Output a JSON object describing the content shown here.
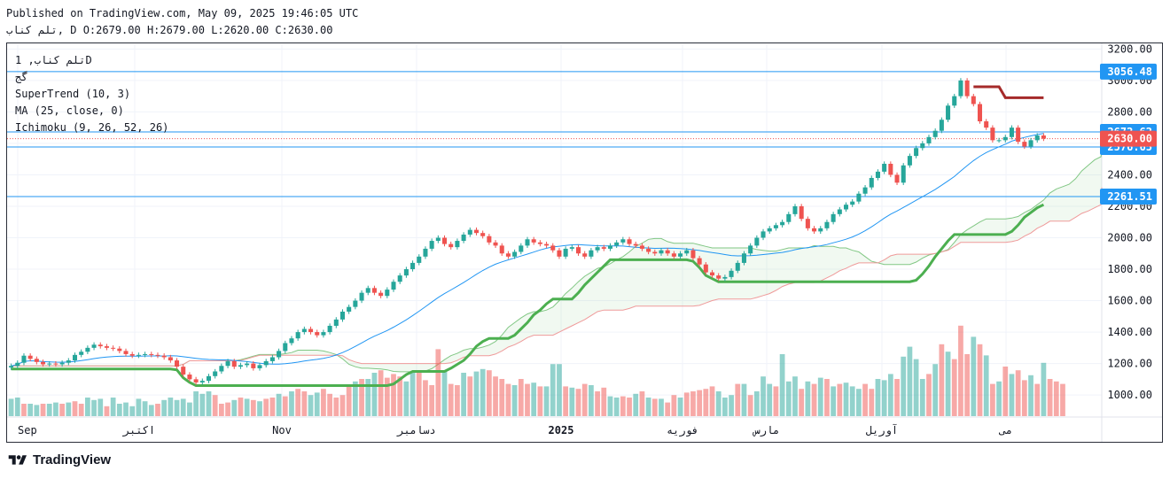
{
  "header": {
    "published": "Published on TradingView.com, May 09, 2025 19:46:05 UTC",
    "ohlc": "تلم کناب, D O:2679.00 H:2679.00 L:2620.00 C:2630.00"
  },
  "legend": {
    "symbol": "تلم کناب, 1D",
    "line2": "گج",
    "supertrend": "SuperTrend (10, 3)",
    "ma": "MA (25, close, 0)",
    "ichimoku": "Ichimoku (9, 26, 52, 26)"
  },
  "brand": {
    "name": "TradingView"
  },
  "colors": {
    "up": "#26a69a",
    "down": "#ef5350",
    "supertrend_up": "#4caf50",
    "supertrend_down": "#a52a2a",
    "ma": "#2196f3",
    "hline": "#2196f3",
    "last_price": "#ef5350"
  },
  "chart_data": {
    "type": "candlestick",
    "y_axis": {
      "ticks": [
        1000,
        1200,
        1400,
        1600,
        1800,
        2000,
        2200,
        2400,
        2600,
        2800,
        3000,
        3200
      ],
      "tick_labels": [
        "1000.00",
        "1200.00",
        "1400.00",
        "1600.00",
        "1800.00",
        "2000.00",
        "2200.00",
        "2400.00",
        "2600.00",
        "2800.00",
        "3000.00",
        "3200.00"
      ],
      "ylim": [
        860,
        3230
      ]
    },
    "x_axis": {
      "labels": [
        "Sep",
        "اکتبر",
        "Nov",
        "دسامبر",
        "2025",
        "فوریه",
        "مارس",
        "آوریل",
        "می"
      ]
    },
    "horizontal_lines": [
      {
        "value": 3056.48,
        "label": "3056.48"
      },
      {
        "value": 2672.62,
        "label": "2672.62"
      },
      {
        "value": 2576.65,
        "label": "2576.65"
      },
      {
        "value": 2261.51,
        "label": "2261.51"
      }
    ],
    "last_price": {
      "value": 2630.0,
      "label": "2630.00"
    },
    "closes": [
      1185,
      1205,
      1250,
      1230,
      1210,
      1195,
      1200,
      1195,
      1205,
      1220,
      1255,
      1275,
      1300,
      1320,
      1310,
      1300,
      1295,
      1280,
      1260,
      1250,
      1255,
      1260,
      1255,
      1250,
      1240,
      1220,
      1180,
      1130,
      1100,
      1080,
      1090,
      1120,
      1150,
      1185,
      1215,
      1180,
      1190,
      1200,
      1170,
      1190,
      1215,
      1240,
      1280,
      1330,
      1360,
      1400,
      1420,
      1400,
      1380,
      1400,
      1440,
      1480,
      1530,
      1560,
      1600,
      1650,
      1680,
      1650,
      1630,
      1670,
      1720,
      1760,
      1800,
      1840,
      1880,
      1930,
      1980,
      2000,
      1960,
      1940,
      1980,
      2020,
      2050,
      2030,
      2010,
      1970,
      1950,
      1900,
      1880,
      1910,
      1950,
      1990,
      1970,
      1960,
      1950,
      1920,
      1880,
      1930,
      1940,
      1900,
      1880,
      1920,
      1940,
      1930,
      1950,
      1970,
      1990,
      1960,
      1950,
      1930,
      1910,
      1900,
      1920,
      1900,
      1880,
      1900,
      1920,
      1870,
      1830,
      1780,
      1760,
      1740,
      1750,
      1790,
      1840,
      1900,
      1950,
      2000,
      2040,
      2060,
      2080,
      2100,
      2150,
      2200,
      2120,
      2060,
      2040,
      2060,
      2100,
      2150,
      2180,
      2210,
      2230,
      2280,
      2320,
      2380,
      2420,
      2470,
      2400,
      2350,
      2460,
      2520,
      2570,
      2600,
      2640,
      2680,
      2750,
      2840,
      2900,
      3000,
      2900,
      2850,
      2740,
      2700,
      2620,
      2620,
      2640,
      2700,
      2610,
      2580,
      2620,
      2650,
      2630
    ],
    "volumes": [
      [
        1,
        0.14
      ],
      [
        1,
        0.15
      ],
      [
        0,
        0.1
      ],
      [
        1,
        0.1
      ],
      [
        1,
        0.09
      ],
      [
        0,
        0.1
      ],
      [
        1,
        0.1
      ],
      [
        1,
        0.11
      ],
      [
        0,
        0.1
      ],
      [
        1,
        0.11
      ],
      [
        0,
        0.12
      ],
      [
        0,
        0.1
      ],
      [
        1,
        0.15
      ],
      [
        1,
        0.13
      ],
      [
        1,
        0.14
      ],
      [
        0,
        0.08
      ],
      [
        1,
        0.15
      ],
      [
        1,
        0.1
      ],
      [
        1,
        0.11
      ],
      [
        1,
        0.08
      ],
      [
        1,
        0.14
      ],
      [
        1,
        0.12
      ],
      [
        1,
        0.09
      ],
      [
        0,
        0.1
      ],
      [
        1,
        0.13
      ],
      [
        1,
        0.15
      ],
      [
        1,
        0.13
      ],
      [
        1,
        0.14
      ],
      [
        1,
        0.11
      ],
      [
        1,
        0.2
      ],
      [
        1,
        0.18
      ],
      [
        1,
        0.2
      ],
      [
        0,
        0.17
      ],
      [
        0,
        0.1
      ],
      [
        0,
        0.11
      ],
      [
        1,
        0.13
      ],
      [
        0,
        0.15
      ],
      [
        1,
        0.14
      ],
      [
        0,
        0.13
      ],
      [
        1,
        0.12
      ],
      [
        0,
        0.14
      ],
      [
        0,
        0.15
      ],
      [
        1,
        0.18
      ],
      [
        0,
        0.16
      ],
      [
        1,
        0.2
      ],
      [
        0,
        0.22
      ],
      [
        0,
        0.2
      ],
      [
        1,
        0.17
      ],
      [
        1,
        0.19
      ],
      [
        0,
        0.22
      ],
      [
        0,
        0.18
      ],
      [
        0,
        0.15
      ],
      [
        0,
        0.17
      ],
      [
        0,
        0.24
      ],
      [
        1,
        0.28
      ],
      [
        0,
        0.3
      ],
      [
        1,
        0.3
      ],
      [
        1,
        0.35
      ],
      [
        0,
        0.37
      ],
      [
        0,
        0.31
      ],
      [
        0,
        0.34
      ],
      [
        0,
        0.32
      ],
      [
        1,
        0.28
      ],
      [
        1,
        0.36
      ],
      [
        0,
        0.37
      ],
      [
        0,
        0.29
      ],
      [
        0,
        0.25
      ],
      [
        0,
        0.54
      ],
      [
        1,
        0.37
      ],
      [
        0,
        0.26
      ],
      [
        0,
        0.25
      ],
      [
        1,
        0.35
      ],
      [
        0,
        0.32
      ],
      [
        1,
        0.36
      ],
      [
        1,
        0.38
      ],
      [
        0,
        0.37
      ],
      [
        0,
        0.32
      ],
      [
        0,
        0.3
      ],
      [
        0,
        0.26
      ],
      [
        1,
        0.25
      ],
      [
        0,
        0.3
      ],
      [
        0,
        0.26
      ],
      [
        1,
        0.27
      ],
      [
        0,
        0.24
      ],
      [
        1,
        0.24
      ],
      [
        1,
        0.42
      ],
      [
        1,
        0.42
      ],
      [
        0,
        0.24
      ],
      [
        1,
        0.23
      ],
      [
        0,
        0.22
      ],
      [
        0,
        0.26
      ],
      [
        1,
        0.25
      ],
      [
        0,
        0.2
      ],
      [
        0,
        0.23
      ],
      [
        1,
        0.16
      ],
      [
        1,
        0.15
      ],
      [
        0,
        0.16
      ],
      [
        0,
        0.15
      ],
      [
        1,
        0.18
      ],
      [
        0,
        0.2
      ],
      [
        1,
        0.15
      ],
      [
        0,
        0.14
      ],
      [
        1,
        0.14
      ],
      [
        0,
        0.11
      ],
      [
        0,
        0.17
      ],
      [
        1,
        0.15
      ],
      [
        0,
        0.19
      ],
      [
        0,
        0.2
      ],
      [
        0,
        0.21
      ],
      [
        0,
        0.22
      ],
      [
        0,
        0.24
      ],
      [
        1,
        0.2
      ],
      [
        1,
        0.15
      ],
      [
        1,
        0.17
      ],
      [
        0,
        0.26
      ],
      [
        1,
        0.26
      ],
      [
        0,
        0.17
      ],
      [
        1,
        0.2
      ],
      [
        1,
        0.32
      ],
      [
        1,
        0.26
      ],
      [
        0,
        0.24
      ],
      [
        1,
        0.5
      ],
      [
        1,
        0.28
      ],
      [
        1,
        0.32
      ],
      [
        0,
        0.22
      ],
      [
        1,
        0.28
      ],
      [
        0,
        0.26
      ],
      [
        1,
        0.31
      ],
      [
        0,
        0.3
      ],
      [
        1,
        0.24
      ],
      [
        0,
        0.26
      ],
      [
        1,
        0.27
      ],
      [
        1,
        0.24
      ],
      [
        1,
        0.22
      ],
      [
        0,
        0.26
      ],
      [
        0,
        0.22
      ],
      [
        1,
        0.3
      ],
      [
        1,
        0.29
      ],
      [
        1,
        0.34
      ],
      [
        0,
        0.3
      ],
      [
        1,
        0.48
      ],
      [
        1,
        0.56
      ],
      [
        1,
        0.46
      ],
      [
        1,
        0.3
      ],
      [
        0,
        0.34
      ],
      [
        1,
        0.42
      ],
      [
        0,
        0.58
      ],
      [
        1,
        0.52
      ],
      [
        0,
        0.46
      ],
      [
        0,
        0.73
      ],
      [
        0,
        0.5
      ],
      [
        1,
        0.64
      ],
      [
        0,
        0.58
      ],
      [
        1,
        0.49
      ],
      [
        0,
        0.26
      ],
      [
        1,
        0.28
      ],
      [
        0,
        0.4
      ],
      [
        1,
        0.34
      ],
      [
        0,
        0.37
      ],
      [
        0,
        0.29
      ],
      [
        1,
        0.33
      ],
      [
        0,
        0.26
      ],
      [
        1,
        0.43
      ],
      [
        0,
        0.3
      ],
      [
        0,
        0.28
      ],
      [
        0,
        0.26
      ]
    ]
  }
}
